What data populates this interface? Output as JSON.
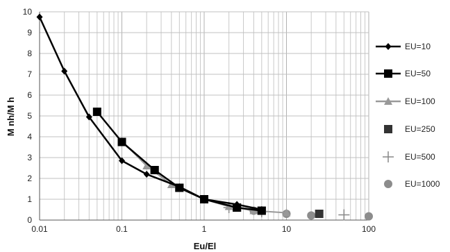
{
  "chart_data": {
    "type": "line",
    "xlabel": "Eu/El",
    "ylabel": "M nh/M h",
    "x_scale": "log",
    "xlim": [
      0.01,
      100
    ],
    "ylim": [
      0,
      10
    ],
    "x_ticks": [
      "0.01",
      "0.1",
      "1",
      "10",
      "100"
    ],
    "y_ticks": [
      "0",
      "1",
      "2",
      "3",
      "4",
      "5",
      "6",
      "7",
      "8",
      "9",
      "10"
    ],
    "grid": true,
    "legend_position": "right",
    "series": [
      {
        "name": "EU=10",
        "marker": "diamond",
        "line": true,
        "color": "#000000",
        "x": [
          0.01,
          0.02,
          0.04,
          0.1,
          0.2,
          0.5,
          1,
          2.5,
          5
        ],
        "y": [
          9.75,
          7.15,
          4.95,
          2.85,
          2.2,
          1.6,
          1.0,
          0.75,
          0.5
        ]
      },
      {
        "name": "EU=50",
        "marker": "square",
        "line": true,
        "color": "#000000",
        "x": [
          0.05,
          0.1,
          0.25,
          0.5,
          1,
          2.5,
          5
        ],
        "y": [
          5.2,
          3.75,
          2.4,
          1.55,
          1.0,
          0.6,
          0.45
        ]
      },
      {
        "name": "EU=100",
        "marker": "triangle",
        "line": true,
        "color": "#999999",
        "x": [
          0.1,
          0.2,
          0.4,
          1,
          2,
          4,
          10
        ],
        "y": [
          3.8,
          2.6,
          1.7,
          1.0,
          0.65,
          0.45,
          0.35
        ]
      },
      {
        "name": "EU=250",
        "marker": "square",
        "line": false,
        "color": "#333333",
        "x": [
          0.25,
          0.5,
          1,
          2.5,
          5,
          25
        ],
        "y": [
          2.4,
          1.55,
          1.0,
          0.6,
          0.45,
          0.3
        ]
      },
      {
        "name": "EU=500",
        "marker": "plus",
        "line": false,
        "color": "#888888",
        "x": [
          2,
          5,
          50
        ],
        "y": [
          0.6,
          0.4,
          0.25
        ]
      },
      {
        "name": "EU=1000",
        "marker": "circle",
        "line": false,
        "color": "#8c8c8c",
        "x": [
          4,
          10,
          20,
          100
        ],
        "y": [
          0.45,
          0.3,
          0.22,
          0.18
        ]
      }
    ]
  }
}
